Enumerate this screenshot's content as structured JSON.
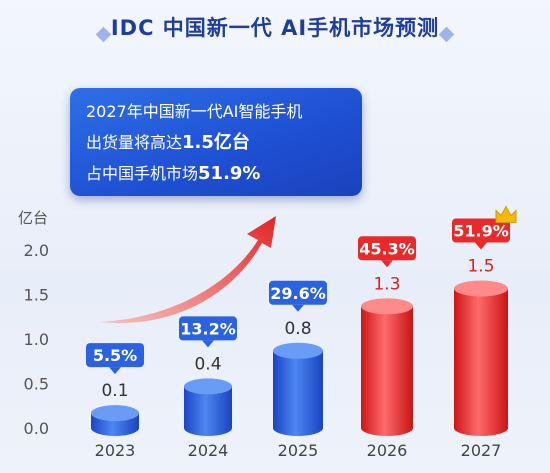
{
  "header": {
    "title": "IDC 中国新一代 AI手机市场预测"
  },
  "callout": {
    "line1": "2027年中国新一代AI智能手机",
    "line2_prefix": "出货量将高达",
    "line2_value": "1.5亿台",
    "line3_prefix": "占中国手机市场",
    "line3_value": "51.9%"
  },
  "chart_data": {
    "type": "bar",
    "title": "IDC 中国新一代 AI手机市场预测",
    "ylabel": "亿台",
    "ylim": [
      0,
      2.0
    ],
    "yticks": [
      "0.0",
      "0.5",
      "1.0",
      "1.5",
      "2.0"
    ],
    "categories": [
      "2023",
      "2024",
      "2025",
      "2026",
      "2027"
    ],
    "values": [
      0.1,
      0.4,
      0.8,
      1.3,
      1.5
    ],
    "value_labels": [
      "0.1",
      "0.4",
      "0.8",
      "1.3",
      "1.5"
    ],
    "share_labels": [
      "5.5%",
      "13.2%",
      "29.6%",
      "45.3%",
      "51.9%"
    ],
    "colors": {
      "actual": "#2a62e0",
      "forecast": "#ea2a2a",
      "arrow": "#e83a3a",
      "axis_text": "#555555"
    },
    "forecast_from_index": 3,
    "grid": false
  }
}
